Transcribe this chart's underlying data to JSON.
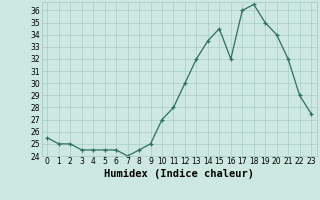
{
  "x": [
    0,
    1,
    2,
    3,
    4,
    5,
    6,
    7,
    8,
    9,
    10,
    11,
    12,
    13,
    14,
    15,
    16,
    17,
    18,
    19,
    20,
    21,
    22,
    23
  ],
  "y": [
    25.5,
    25.0,
    25.0,
    24.5,
    24.5,
    24.5,
    24.5,
    24.0,
    24.5,
    25.0,
    27.0,
    28.0,
    30.0,
    32.0,
    33.5,
    34.5,
    32.0,
    36.0,
    36.5,
    35.0,
    34.0,
    32.0,
    29.0,
    27.5
  ],
  "line_color": "#2d7060",
  "marker": "+",
  "bg_color": "#cce8e0",
  "grid_color": "#aacccc",
  "xlabel": "Humidex (Indice chaleur)",
  "ylim_min": 24,
  "ylim_max": 36.7,
  "xlim_min": -0.5,
  "xlim_max": 23.5,
  "yticks": [
    24,
    25,
    26,
    27,
    28,
    29,
    30,
    31,
    32,
    33,
    34,
    35,
    36
  ],
  "xticks": [
    0,
    1,
    2,
    3,
    4,
    5,
    6,
    7,
    8,
    9,
    10,
    11,
    12,
    13,
    14,
    15,
    16,
    17,
    18,
    19,
    20,
    21,
    22,
    23
  ],
  "tick_fontsize": 5.5,
  "label_fontsize": 7.5
}
